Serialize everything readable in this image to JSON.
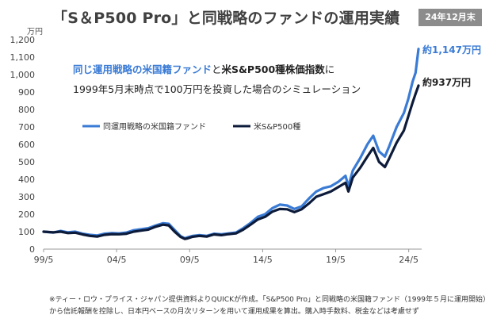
{
  "header": {
    "title": "「S＆P500 Pro」と同戦略のファンドの運用実績",
    "date_badge": "24年12月末"
  },
  "footnote": {
    "line1": "※ティー・ロウ・プライス・ジャパン提供資料よりQUICKが作成。「S&P500 Pro」と同戦略の米国籍ファンド（1999年５月に運用開始）",
    "line2": "から信託報酬を控除し、日本円ベースの月次リターンを用いて運用成果を算出。購入時手数料、税金などは考慮せず"
  },
  "colors": {
    "fund": "#3a7bd5",
    "index": "#0d1b3a",
    "highlight": "#3a7bd5",
    "badge": "#8c8c8c"
  },
  "chart_data": {
    "type": "line",
    "unit_label": "万円",
    "subtitle_line1_part1": "同じ運用戦略の米国籍ファンド",
    "subtitle_line1_part2": "と",
    "subtitle_line1_part3": "米S&P500種株価指数",
    "subtitle_line1_part4": "に",
    "subtitle_line2": "1999年5月末時点で100万円を投資した場合のシミュレーション",
    "ylim": [
      0,
      1200
    ],
    "yticks": [
      0,
      100,
      200,
      300,
      400,
      500,
      600,
      700,
      800,
      900,
      1000,
      1100,
      1200
    ],
    "ytick_labels": [
      "0",
      "100",
      "200",
      "300",
      "400",
      "500",
      "600",
      "700",
      "800",
      "900",
      "1,000",
      "1,100",
      "1,200"
    ],
    "xlim": [
      1999.33,
      2025.0
    ],
    "xticks": [
      1999.33,
      2004.33,
      2009.33,
      2014.33,
      2019.33,
      2024.33
    ],
    "xtick_labels": [
      "99/5",
      "04/5",
      "09/5",
      "14/5",
      "19/5",
      "24/5"
    ],
    "legend_position": "upper-left",
    "grid": false,
    "series": [
      {
        "name": "同運用戦略の米国籍ファンド",
        "end_label": "約1,147万円",
        "x": [
          1999.33,
          2000.0,
          2000.5,
          2001.0,
          2001.5,
          2002.0,
          2002.5,
          2003.0,
          2003.5,
          2004.0,
          2004.5,
          2005.0,
          2005.5,
          2006.0,
          2006.5,
          2007.0,
          2007.5,
          2007.9,
          2008.3,
          2008.7,
          2009.0,
          2009.2,
          2009.5,
          2010.0,
          2010.5,
          2011.0,
          2011.5,
          2012.0,
          2012.5,
          2013.0,
          2013.5,
          2014.0,
          2014.5,
          2015.0,
          2015.5,
          2016.0,
          2016.5,
          2017.0,
          2017.5,
          2018.0,
          2018.5,
          2019.0,
          2019.5,
          2020.0,
          2020.2,
          2020.5,
          2021.0,
          2021.5,
          2021.9,
          2022.3,
          2022.7,
          2023.0,
          2023.5,
          2024.0,
          2024.3,
          2024.6,
          2024.8,
          2025.0
        ],
        "values": [
          100,
          95,
          104,
          96,
          100,
          88,
          82,
          78,
          88,
          92,
          90,
          95,
          108,
          114,
          120,
          135,
          148,
          145,
          110,
          75,
          62,
          68,
          75,
          80,
          76,
          88,
          85,
          90,
          95,
          120,
          150,
          185,
          200,
          235,
          255,
          250,
          230,
          245,
          290,
          330,
          350,
          360,
          385,
          420,
          360,
          450,
          520,
          600,
          650,
          560,
          530,
          590,
          700,
          780,
          860,
          960,
          1010,
          1147
        ]
      },
      {
        "name": "米S&P500種",
        "end_label": "約937万円",
        "x": [
          1999.33,
          2000.0,
          2000.5,
          2001.0,
          2001.5,
          2002.0,
          2002.5,
          2003.0,
          2003.5,
          2004.0,
          2004.5,
          2005.0,
          2005.5,
          2006.0,
          2006.5,
          2007.0,
          2007.5,
          2007.9,
          2008.3,
          2008.7,
          2009.0,
          2009.2,
          2009.5,
          2010.0,
          2010.5,
          2011.0,
          2011.5,
          2012.0,
          2012.5,
          2013.0,
          2013.5,
          2014.0,
          2014.5,
          2015.0,
          2015.5,
          2016.0,
          2016.5,
          2017.0,
          2017.5,
          2018.0,
          2018.5,
          2019.0,
          2019.5,
          2020.0,
          2020.2,
          2020.5,
          2021.0,
          2021.5,
          2021.9,
          2022.3,
          2022.7,
          2023.0,
          2023.5,
          2024.0,
          2024.3,
          2024.6,
          2024.8,
          2025.0
        ],
        "values": [
          100,
          96,
          100,
          92,
          94,
          84,
          76,
          72,
          82,
          86,
          85,
          88,
          100,
          106,
          112,
          128,
          140,
          136,
          100,
          70,
          58,
          62,
          70,
          76,
          72,
          84,
          80,
          86,
          90,
          112,
          140,
          170,
          185,
          215,
          230,
          228,
          212,
          228,
          262,
          300,
          315,
          330,
          355,
          380,
          330,
          410,
          465,
          530,
          580,
          500,
          470,
          520,
          610,
          680,
          760,
          840,
          890,
          937
        ]
      }
    ]
  }
}
